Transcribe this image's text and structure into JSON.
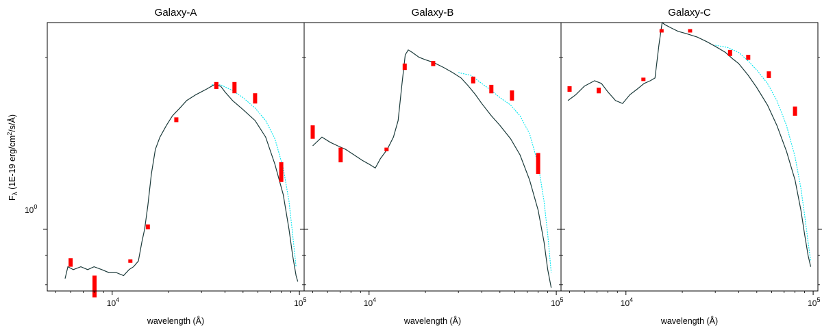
{
  "figure": {
    "ylabel": "F",
    "ylabel_sub": "λ",
    "ylabel_rest": " (1E-19 erg/cm",
    "ylabel_sup": "2",
    "ylabel_end": "/s/Å)",
    "y_tick_label": "10",
    "y_tick_sup": "0",
    "colors": {
      "model": "#1b3a3a",
      "alt_model": "#00e5ee",
      "photometry": "#ff0000"
    }
  },
  "chart_data": [
    {
      "type": "line",
      "title": "Galaxy-A",
      "xlabel": "wavelength (Å)",
      "xscale": "log",
      "yscale": "log",
      "xlim": [
        4500,
        106000
      ],
      "ylim": [
        0.78,
        2.3
      ],
      "x_ticks": [
        {
          "base": "10",
          "exp": "4",
          "value": 10000
        },
        {
          "base": "10",
          "exp": "5",
          "value": 100000
        }
      ],
      "y_ticks": [
        1.0
      ],
      "series": [
        {
          "style": "solid",
          "points": [
            [
              5600,
              0.82
            ],
            [
              5800,
              0.86
            ],
            [
              6200,
              0.85
            ],
            [
              6800,
              0.86
            ],
            [
              7400,
              0.85
            ],
            [
              8000,
              0.86
            ],
            [
              8800,
              0.85
            ],
            [
              9600,
              0.84
            ],
            [
              10500,
              0.84
            ],
            [
              11500,
              0.83
            ],
            [
              12300,
              0.85
            ],
            [
              13000,
              0.86
            ],
            [
              13800,
              0.88
            ],
            [
              14400,
              0.95
            ],
            [
              14900,
              1.0
            ],
            [
              15500,
              1.1
            ],
            [
              16200,
              1.25
            ],
            [
              17000,
              1.38
            ],
            [
              18000,
              1.45
            ],
            [
              19500,
              1.52
            ],
            [
              21000,
              1.58
            ],
            [
              23000,
              1.63
            ],
            [
              25000,
              1.68
            ],
            [
              28000,
              1.72
            ],
            [
              32000,
              1.76
            ],
            [
              35000,
              1.79
            ],
            [
              38000,
              1.78
            ],
            [
              40000,
              1.74
            ],
            [
              44000,
              1.68
            ],
            [
              50000,
              1.62
            ],
            [
              58000,
              1.55
            ],
            [
              66000,
              1.45
            ],
            [
              74000,
              1.3
            ],
            [
              82000,
              1.15
            ],
            [
              88000,
              1.0
            ],
            [
              92000,
              0.9
            ],
            [
              96000,
              0.83
            ],
            [
              98000,
              0.81
            ]
          ]
        },
        {
          "style": "dashed",
          "points": [
            [
              34000,
              1.79
            ],
            [
              38000,
              1.79
            ],
            [
              44000,
              1.75
            ],
            [
              50000,
              1.7
            ],
            [
              58000,
              1.63
            ],
            [
              66000,
              1.55
            ],
            [
              74000,
              1.44
            ],
            [
              82000,
              1.28
            ],
            [
              88000,
              1.12
            ],
            [
              92000,
              0.98
            ],
            [
              96000,
              0.86
            ]
          ]
        }
      ],
      "photometry": [
        {
          "x": 6000,
          "ylo": 0.86,
          "yhi": 0.89
        },
        {
          "x": 8050,
          "ylo": 0.76,
          "yhi": 0.83
        },
        {
          "x": 12500,
          "ylo": 0.875,
          "yhi": 0.885
        },
        {
          "x": 15500,
          "ylo": 1.0,
          "yhi": 1.02
        },
        {
          "x": 22000,
          "ylo": 1.54,
          "yhi": 1.57
        },
        {
          "x": 36000,
          "ylo": 1.76,
          "yhi": 1.81
        },
        {
          "x": 45000,
          "ylo": 1.73,
          "yhi": 1.81
        },
        {
          "x": 58000,
          "ylo": 1.66,
          "yhi": 1.73
        },
        {
          "x": 80000,
          "ylo": 1.21,
          "yhi": 1.31
        }
      ]
    },
    {
      "type": "line",
      "title": "Galaxy-B",
      "xlabel": "wavelength (Å)",
      "xscale": "log",
      "yscale": "log",
      "xlim": [
        4500,
        106000
      ],
      "ylim": [
        0.78,
        2.3
      ],
      "x_ticks": [
        {
          "base": "10",
          "exp": "4",
          "value": 10000
        },
        {
          "base": "10",
          "exp": "5",
          "value": 100000
        }
      ],
      "y_ticks": [
        1.0
      ],
      "series": [
        {
          "style": "solid",
          "points": [
            [
              5000,
              1.4
            ],
            [
              5600,
              1.45
            ],
            [
              6200,
              1.42
            ],
            [
              6800,
              1.4
            ],
            [
              7500,
              1.38
            ],
            [
              8300,
              1.35
            ],
            [
              9200,
              1.32
            ],
            [
              10000,
              1.3
            ],
            [
              10800,
              1.28
            ],
            [
              11500,
              1.33
            ],
            [
              12500,
              1.38
            ],
            [
              13500,
              1.45
            ],
            [
              14300,
              1.55
            ],
            [
              15000,
              1.8
            ],
            [
              15600,
              2.02
            ],
            [
              16200,
              2.06
            ],
            [
              17000,
              2.04
            ],
            [
              18500,
              2.0
            ],
            [
              20000,
              1.98
            ],
            [
              22000,
              1.96
            ],
            [
              25000,
              1.92
            ],
            [
              28000,
              1.88
            ],
            [
              31000,
              1.84
            ],
            [
              34000,
              1.78
            ],
            [
              37000,
              1.72
            ],
            [
              40000,
              1.66
            ],
            [
              45000,
              1.58
            ],
            [
              50000,
              1.52
            ],
            [
              57000,
              1.44
            ],
            [
              64000,
              1.35
            ],
            [
              72000,
              1.22
            ],
            [
              80000,
              1.08
            ],
            [
              86000,
              0.95
            ],
            [
              90000,
              0.85
            ],
            [
              94000,
              0.79
            ]
          ]
        },
        {
          "style": "dashed",
          "points": [
            [
              30000,
              1.88
            ],
            [
              35000,
              1.86
            ],
            [
              40000,
              1.8
            ],
            [
              45000,
              1.75
            ],
            [
              50000,
              1.7
            ],
            [
              57000,
              1.65
            ],
            [
              64000,
              1.58
            ],
            [
              72000,
              1.47
            ],
            [
              80000,
              1.3
            ],
            [
              86000,
              1.12
            ],
            [
              90000,
              0.98
            ],
            [
              94000,
              0.84
            ]
          ]
        }
      ],
      "photometry": [
        {
          "x": 5000,
          "ylo": 1.44,
          "yhi": 1.52
        },
        {
          "x": 7050,
          "ylo": 1.31,
          "yhi": 1.39
        },
        {
          "x": 12400,
          "ylo": 1.37,
          "yhi": 1.39
        },
        {
          "x": 15500,
          "ylo": 1.9,
          "yhi": 1.95
        },
        {
          "x": 22000,
          "ylo": 1.93,
          "yhi": 1.97
        },
        {
          "x": 36000,
          "ylo": 1.8,
          "yhi": 1.85
        },
        {
          "x": 45000,
          "ylo": 1.73,
          "yhi": 1.79
        },
        {
          "x": 58000,
          "ylo": 1.68,
          "yhi": 1.75
        },
        {
          "x": 80000,
          "ylo": 1.25,
          "yhi": 1.36
        }
      ]
    },
    {
      "type": "line",
      "title": "Galaxy-C",
      "xlabel": "wavelength (Å)",
      "xscale": "log",
      "yscale": "log",
      "xlim": [
        4500,
        106000
      ],
      "ylim": [
        0.78,
        2.3
      ],
      "x_ticks": [
        {
          "base": "10",
          "exp": "4",
          "value": 10000
        },
        {
          "base": "10",
          "exp": "5",
          "value": 100000
        }
      ],
      "y_ticks": [
        1.0
      ],
      "series": [
        {
          "style": "solid",
          "points": [
            [
              4900,
              1.68
            ],
            [
              5400,
              1.72
            ],
            [
              6000,
              1.78
            ],
            [
              6800,
              1.82
            ],
            [
              7400,
              1.8
            ],
            [
              8000,
              1.74
            ],
            [
              8800,
              1.68
            ],
            [
              9600,
              1.66
            ],
            [
              10500,
              1.72
            ],
            [
              11500,
              1.76
            ],
            [
              12500,
              1.8
            ],
            [
              13500,
              1.82
            ],
            [
              14300,
              1.84
            ],
            [
              15000,
              2.1
            ],
            [
              15600,
              2.3
            ],
            [
              16200,
              2.28
            ],
            [
              17500,
              2.25
            ],
            [
              19000,
              2.22
            ],
            [
              21000,
              2.2
            ],
            [
              24000,
              2.17
            ],
            [
              27000,
              2.13
            ],
            [
              30000,
              2.09
            ],
            [
              34000,
              2.04
            ],
            [
              37000,
              1.99
            ],
            [
              40000,
              1.95
            ],
            [
              45000,
              1.86
            ],
            [
              50000,
              1.77
            ],
            [
              57000,
              1.65
            ],
            [
              64000,
              1.52
            ],
            [
              72000,
              1.37
            ],
            [
              80000,
              1.22
            ],
            [
              86000,
              1.08
            ],
            [
              90000,
              0.98
            ],
            [
              94000,
              0.9
            ],
            [
              97000,
              0.86
            ]
          ]
        },
        {
          "style": "dashed",
          "points": [
            [
              30000,
              2.1
            ],
            [
              35000,
              2.08
            ],
            [
              40000,
              2.04
            ],
            [
              45000,
              1.97
            ],
            [
              50000,
              1.9
            ],
            [
              57000,
              1.8
            ],
            [
              64000,
              1.68
            ],
            [
              72000,
              1.52
            ],
            [
              80000,
              1.34
            ],
            [
              86000,
              1.18
            ],
            [
              90000,
              1.06
            ],
            [
              94000,
              0.95
            ],
            [
              97000,
              0.88
            ]
          ]
        }
      ],
      "photometry": [
        {
          "x": 5000,
          "ylo": 1.74,
          "yhi": 1.78
        },
        {
          "x": 7150,
          "ylo": 1.73,
          "yhi": 1.77
        },
        {
          "x": 12400,
          "ylo": 1.82,
          "yhi": 1.84
        },
        {
          "x": 15500,
          "ylo": 2.21,
          "yhi": 2.24
        },
        {
          "x": 22000,
          "ylo": 2.21,
          "yhi": 2.24
        },
        {
          "x": 36000,
          "ylo": 2.01,
          "yhi": 2.06
        },
        {
          "x": 45000,
          "ylo": 1.98,
          "yhi": 2.02
        },
        {
          "x": 58000,
          "ylo": 1.84,
          "yhi": 1.89
        },
        {
          "x": 80000,
          "ylo": 1.58,
          "yhi": 1.64
        }
      ]
    }
  ]
}
